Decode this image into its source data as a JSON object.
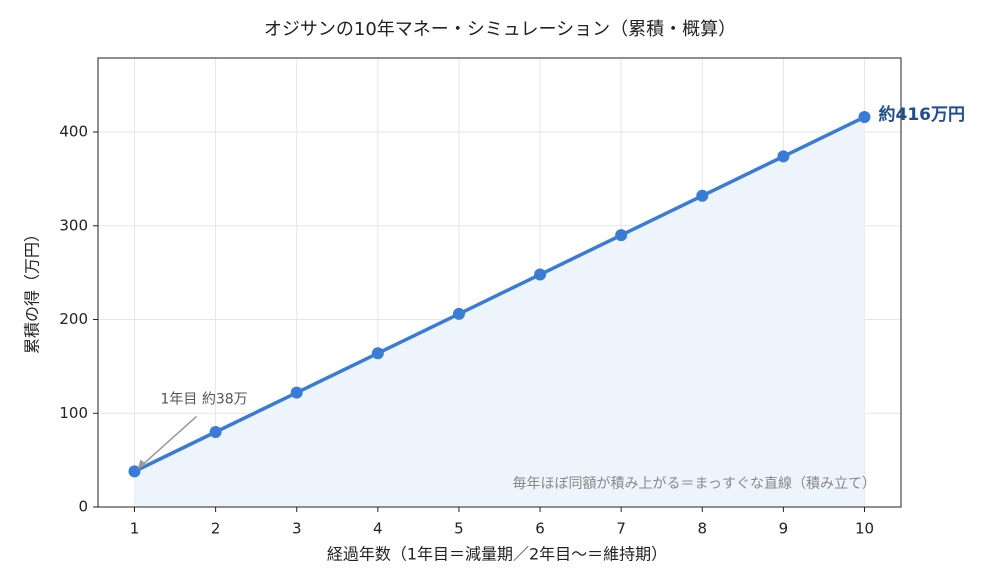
{
  "chart_data": {
    "type": "line",
    "title": "オジサンの10年マネー・シミュレーション（累積・概算）",
    "x_label": "経過年数（1年目＝減量期／2年目〜＝維持期）",
    "y_label": "累積の得（万円）",
    "x": [
      1,
      2,
      3,
      4,
      5,
      6,
      7,
      8,
      9,
      10
    ],
    "series": [
      {
        "name": "累積の得",
        "color": "#3a7bd5",
        "values": [
          38,
          80,
          122,
          164,
          206,
          248,
          290,
          332,
          374,
          416
        ]
      }
    ],
    "xlim": [
      0.55,
      10.45
    ],
    "xticks": [
      1,
      2,
      3,
      4,
      5,
      6,
      7,
      8,
      9,
      10
    ],
    "ylim": [
      0,
      479
    ],
    "yticks": [
      0,
      100,
      200,
      300,
      400
    ],
    "grid": true,
    "area_fill": "#eef4fc",
    "annotations": [
      "1年目 約38万",
      "約416万円",
      "毎年ほぼ同額が積み上がる＝まっすぐな直線（積み立て）"
    ]
  }
}
